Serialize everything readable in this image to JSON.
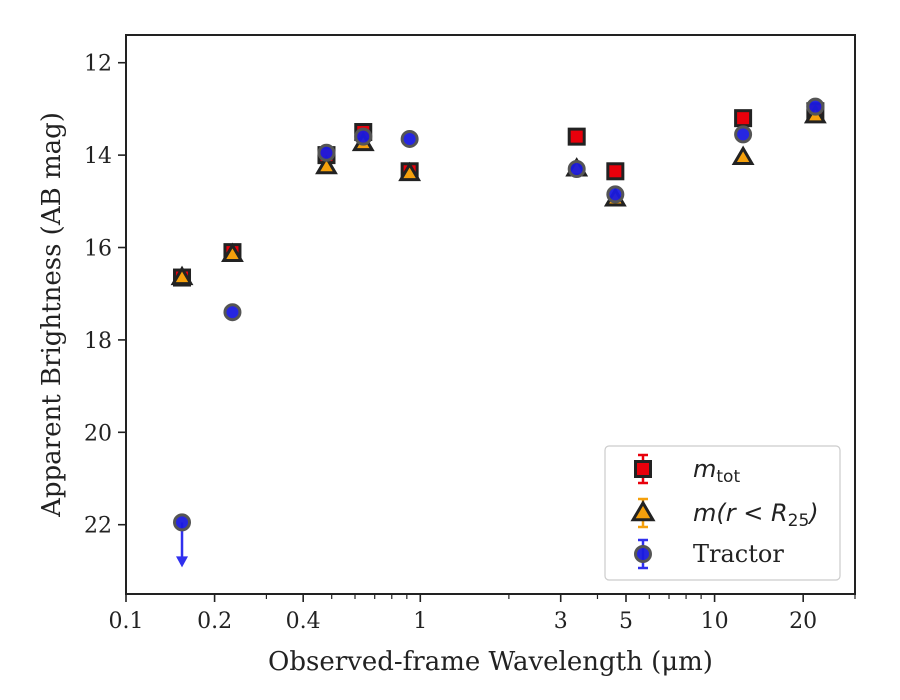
{
  "chart_data": {
    "type": "scatter",
    "title": "",
    "xlabel": "Observed-frame Wavelength (μm)",
    "ylabel": "Apparent Brightness (AB mag)",
    "x_scale": "log",
    "xlim": [
      0.1,
      30
    ],
    "ylim": [
      23.5,
      11.4
    ],
    "y_inverted": true,
    "x_ticks": [
      0.1,
      0.2,
      0.4,
      1,
      3,
      5,
      10,
      20
    ],
    "x_tick_labels": [
      "0.1",
      "0.2",
      "0.4",
      "1",
      "3",
      "5",
      "10",
      "20"
    ],
    "y_ticks": [
      12,
      14,
      16,
      18,
      20,
      22
    ],
    "y_tick_labels": [
      "12",
      "14",
      "16",
      "18",
      "20",
      "22"
    ],
    "grid": false,
    "legend_position": "bottom-right",
    "series": [
      {
        "name": "m_tot",
        "label_main": "m",
        "label_sub": "tot",
        "marker": "square",
        "color": "#e8000b",
        "edge": "#222222",
        "errorbar_color": "#e8000b",
        "x": [
          0.155,
          0.23,
          0.48,
          0.64,
          0.92,
          3.4,
          4.6,
          12.5,
          22.0
        ],
        "y": [
          16.65,
          16.1,
          14.0,
          13.5,
          14.35,
          13.6,
          14.35,
          13.2,
          13.05
        ]
      },
      {
        "name": "m(r < R25)",
        "label_main": "m(r < R",
        "label_sub": "25",
        "label_end": ")",
        "marker": "triangle",
        "color": "#f5a00c",
        "edge": "#222222",
        "errorbar_color": "#f5a00c",
        "x": [
          0.155,
          0.23,
          0.48,
          0.64,
          0.92,
          3.4,
          4.6,
          12.5,
          22.0
        ],
        "y": [
          16.65,
          16.15,
          14.25,
          13.75,
          14.4,
          14.3,
          14.95,
          14.05,
          13.15
        ]
      },
      {
        "name": "Tractor",
        "label_main": "Tractor",
        "marker": "circle",
        "color": "#1a1adf",
        "edge": "#555555",
        "errorbar_color": "#3030ee",
        "x": [
          0.155,
          0.23,
          0.48,
          0.64,
          0.92,
          3.4,
          4.6,
          12.5,
          22.0
        ],
        "y": [
          21.95,
          17.4,
          13.95,
          13.6,
          13.65,
          14.3,
          14.85,
          13.55,
          12.95
        ],
        "upper_limit": [
          true,
          false,
          false,
          false,
          false,
          false,
          false,
          false,
          false
        ]
      }
    ]
  }
}
